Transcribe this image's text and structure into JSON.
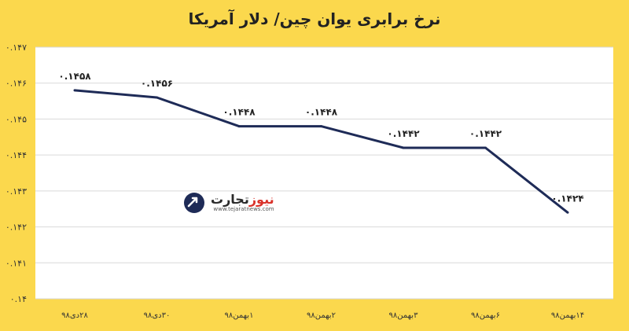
{
  "title": "نرخ برابری یوان چین/ دلار آمریکا",
  "logo": {
    "name_part1": "تجارت",
    "name_part2": "نیوز",
    "url": "www.tejaratnews.com",
    "icon": "globe-arrow-icon"
  },
  "colors": {
    "background": "#fbd84d",
    "plot_background": "#ffffff",
    "line": "#1e2b57",
    "grid": "#d9d9d9",
    "logo_accent": "#d9322a"
  },
  "chart_data": {
    "type": "line",
    "title": "نرخ برابری یوان چین/ دلار آمریکا",
    "categories": [
      "۲۸دی۹۸",
      "۳۰دی۹۸",
      "۱بهمن۹۸",
      "۲بهمن۹۸",
      "۳بهمن۹۸",
      "۶بهمن۹۸",
      "۱۴بهمن۹۸"
    ],
    "values": [
      0.1458,
      0.1456,
      0.1448,
      0.1448,
      0.1442,
      0.1442,
      0.1424
    ],
    "data_labels": [
      "۰.۱۴۵۸",
      "۰.۱۴۵۶",
      "۰.۱۴۴۸",
      "۰.۱۴۴۸",
      "۰.۱۴۴۲",
      "۰.۱۴۴۲",
      "۰.۱۴۲۴"
    ],
    "yticks": [
      0.14,
      0.141,
      0.142,
      0.143,
      0.144,
      0.145,
      0.146,
      0.147
    ],
    "ytick_labels": [
      "۰.۱۴",
      "۰.۱۴۱",
      "۰.۱۴۲",
      "۰.۱۴۳",
      "۰.۱۴۴",
      "۰.۱۴۵",
      "۰.۱۴۶",
      "۰.۱۴۷"
    ],
    "ylim": [
      0.14,
      0.147
    ],
    "xlabel": "",
    "ylabel": "",
    "grid": true
  }
}
